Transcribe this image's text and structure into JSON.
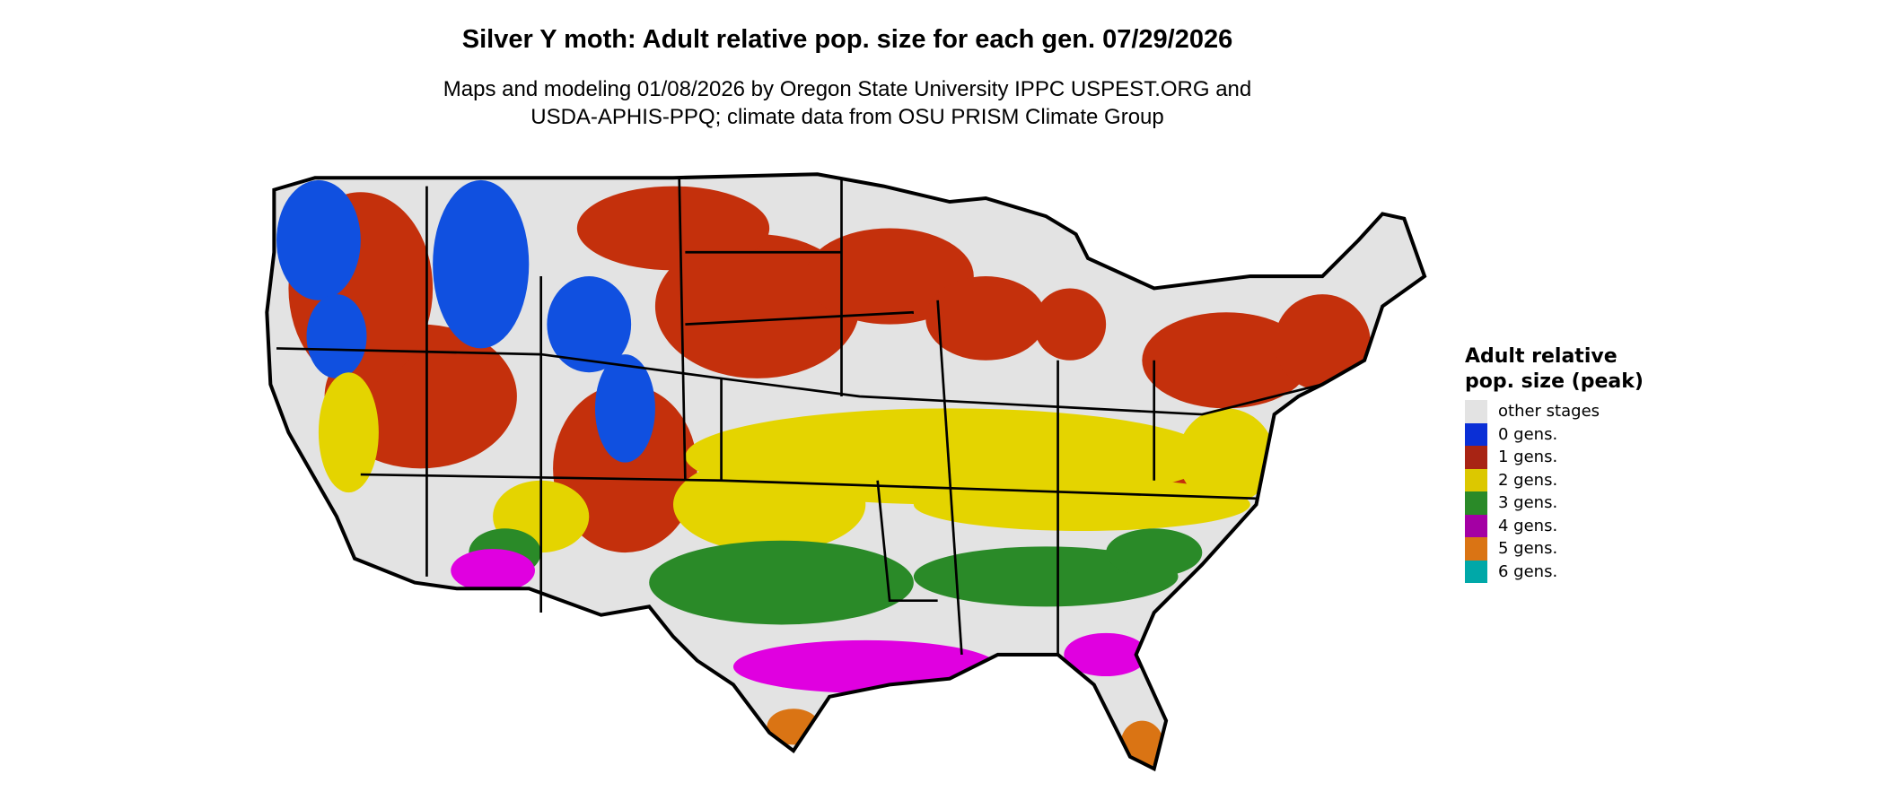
{
  "title": "Silver Y moth: Adult relative pop. size for each gen. 07/29/2026",
  "subtitle_lines": [
    "Maps and modeling 01/08/2026 by Oregon State University IPPC USPEST.ORG and",
    "USDA-APHIS-PPQ; climate data from OSU PRISM Climate Group"
  ],
  "legend": {
    "title": "Adult relative pop. size (peak)",
    "items": [
      {
        "label": "other stages",
        "color": "#e3e3e3"
      },
      {
        "label": "0 gens.",
        "color": "#0a2fd6"
      },
      {
        "label": "1 gens.",
        "color": "#a82414"
      },
      {
        "label": "2 gens.",
        "color": "#dcc800"
      },
      {
        "label": "3 gens.",
        "color": "#2a8a28"
      },
      {
        "label": "4 gens.",
        "color": "#a400a4"
      },
      {
        "label": "5 gens.",
        "color": "#da7414"
      },
      {
        "label": "6 gens.",
        "color": "#00a8a8"
      }
    ]
  }
}
